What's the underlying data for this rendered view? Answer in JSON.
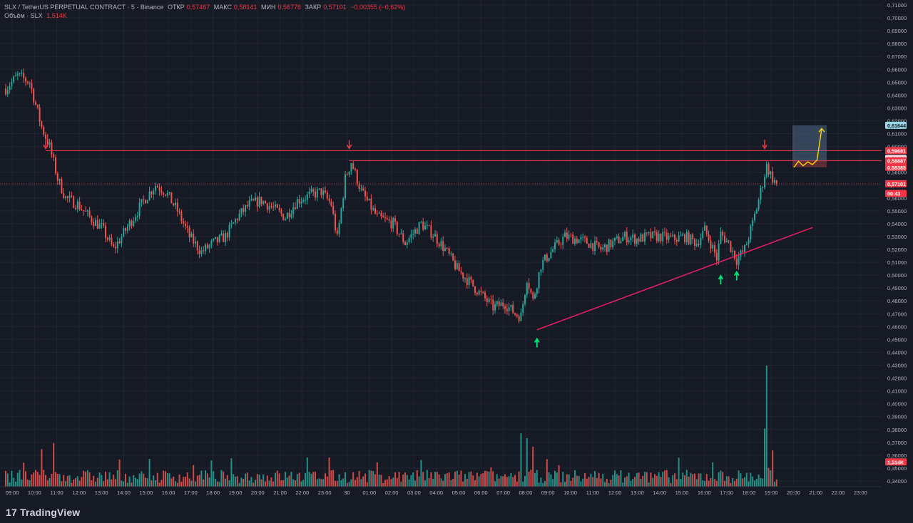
{
  "header": {
    "symbol": "SLX / TetherUS PERPETUAL CONTRACT · 5 · Binance",
    "open_label": "ОТКР",
    "open_value": "0,57467",
    "high_label": "МАКС",
    "high_value": "0,58141",
    "low_label": "МИН",
    "low_value": "0,56776",
    "close_label": "ЗАКР",
    "close_value": "0,57101",
    "change": "−0,00355 (−0,62%)",
    "volume_label": "Объём · SLX",
    "volume_value": "1,514K"
  },
  "price_axis": {
    "ticks": [
      "0,71000",
      "0,70000",
      "0,69000",
      "0,68000",
      "0,67000",
      "0,66000",
      "0,65000",
      "0,64000",
      "0,63000",
      "0,62000",
      "0,61000",
      "0,60000",
      "0,59000",
      "0,58000",
      "0,57000",
      "0,56000",
      "0,55000",
      "0,54000",
      "0,53000",
      "0,52000",
      "0,51000",
      "0,50000",
      "0,49000",
      "0,48000",
      "0,47000",
      "0,46000",
      "0,45000",
      "0,44000",
      "0,43000",
      "0,42000",
      "0,41000",
      "0,40000",
      "0,39000",
      "0,38000",
      "0,37000",
      "0,36000",
      "0,35000",
      "0,34000"
    ],
    "tick_values": [
      0.71,
      0.7,
      0.69,
      0.68,
      0.67,
      0.66,
      0.65,
      0.64,
      0.63,
      0.62,
      0.61,
      0.6,
      0.59,
      0.58,
      0.57,
      0.56,
      0.55,
      0.54,
      0.53,
      0.52,
      0.51,
      0.5,
      0.49,
      0.48,
      0.47,
      0.46,
      0.45,
      0.44,
      0.43,
      0.42,
      0.41,
      0.4,
      0.39,
      0.38,
      0.37,
      0.36,
      0.35,
      0.34
    ],
    "badges": [
      {
        "text": "0,61644",
        "value": 0.61644,
        "bg": "#9ad7e6",
        "fg": "#161a25"
      },
      {
        "text": "0,59681",
        "value": 0.59681,
        "bg": "#f23645",
        "fg": "#ffffff"
      },
      {
        "text": "0,59074",
        "value": 0.59074,
        "bg": "#f7d9df",
        "fg": "#161a25"
      },
      {
        "text": "0,58887",
        "value": 0.58887,
        "bg": "#f23645",
        "fg": "#ffffff"
      },
      {
        "text": "0,58385",
        "value": 0.58385,
        "bg": "#f23645",
        "fg": "#ffffff"
      },
      {
        "text": "0,57101",
        "value": 0.57101,
        "bg": "#f23645",
        "fg": "#ffffff"
      },
      {
        "text": "00:43",
        "value": 0.5635,
        "bg": "#f23645",
        "fg": "#ffffff"
      },
      {
        "text": "1,514K",
        "value": 0.3548,
        "bg": "#f23645",
        "fg": "#ffffff"
      }
    ]
  },
  "time_axis": {
    "labels": [
      "09:00",
      "10:00",
      "11:00",
      "12:00",
      "13:00",
      "14:00",
      "15:00",
      "16:00",
      "17:00",
      "18:00",
      "19:00",
      "20:00",
      "21:00",
      "22:00",
      "23:00",
      "30",
      "01:00",
      "02:00",
      "03:00",
      "04:00",
      "05:00",
      "06:00",
      "07:00",
      "08:00",
      "09:00",
      "10:00",
      "11:00",
      "12:00",
      "13:00",
      "14:00",
      "15:00",
      "16:00",
      "17:00",
      "18:00",
      "19:00",
      "20:00",
      "21:00",
      "22:00",
      "23:00"
    ]
  },
  "chart_data": {
    "type": "candlestick",
    "symbol": "SLX/USDT",
    "timeframe": "5",
    "ylim": [
      0.34,
      0.71
    ],
    "price_path": [
      [
        0,
        0.645
      ],
      [
        6,
        0.655
      ],
      [
        12,
        0.65
      ],
      [
        18,
        0.615
      ],
      [
        22,
        0.6
      ],
      [
        26,
        0.575
      ],
      [
        30,
        0.56
      ],
      [
        36,
        0.555
      ],
      [
        42,
        0.545
      ],
      [
        48,
        0.537
      ],
      [
        54,
        0.52
      ],
      [
        58,
        0.53
      ],
      [
        64,
        0.545
      ],
      [
        70,
        0.56
      ],
      [
        75,
        0.57
      ],
      [
        80,
        0.565
      ],
      [
        86,
        0.55
      ],
      [
        92,
        0.53
      ],
      [
        98,
        0.518
      ],
      [
        104,
        0.525
      ],
      [
        110,
        0.53
      ],
      [
        116,
        0.545
      ],
      [
        122,
        0.555
      ],
      [
        128,
        0.558
      ],
      [
        134,
        0.552
      ],
      [
        140,
        0.545
      ],
      [
        146,
        0.558
      ],
      [
        152,
        0.562
      ],
      [
        158,
        0.565
      ],
      [
        163,
        0.555
      ],
      [
        166,
        0.528
      ],
      [
        170,
        0.575
      ],
      [
        173,
        0.588
      ],
      [
        178,
        0.565
      ],
      [
        186,
        0.545
      ],
      [
        194,
        0.54
      ],
      [
        200,
        0.525
      ],
      [
        208,
        0.54
      ],
      [
        214,
        0.532
      ],
      [
        220,
        0.52
      ],
      [
        226,
        0.505
      ],
      [
        232,
        0.495
      ],
      [
        238,
        0.485
      ],
      [
        244,
        0.475
      ],
      [
        250,
        0.478
      ],
      [
        255,
        0.47
      ],
      [
        258,
        0.468
      ],
      [
        261,
        0.498
      ],
      [
        264,
        0.48
      ],
      [
        268,
        0.508
      ],
      [
        274,
        0.52
      ],
      [
        280,
        0.53
      ],
      [
        286,
        0.528
      ],
      [
        292,
        0.525
      ],
      [
        298,
        0.52
      ],
      [
        304,
        0.525
      ],
      [
        310,
        0.53
      ],
      [
        316,
        0.528
      ],
      [
        322,
        0.53
      ],
      [
        328,
        0.53
      ],
      [
        334,
        0.528
      ],
      [
        340,
        0.53
      ],
      [
        346,
        0.525
      ],
      [
        350,
        0.535
      ],
      [
        353,
        0.525
      ],
      [
        356,
        0.513
      ],
      [
        358,
        0.532
      ],
      [
        362,
        0.525
      ],
      [
        366,
        0.512
      ],
      [
        370,
        0.52
      ],
      [
        374,
        0.54
      ],
      [
        378,
        0.565
      ],
      [
        381,
        0.585
      ],
      [
        384,
        0.575
      ],
      [
        386,
        0.571
      ]
    ],
    "volume_spikes": [
      [
        18,
        0.31
      ],
      [
        24,
        0.36
      ],
      [
        162,
        0.24
      ],
      [
        208,
        0.22
      ],
      [
        258,
        0.44
      ],
      [
        261,
        0.4
      ],
      [
        264,
        0.33
      ],
      [
        337,
        0.24
      ],
      [
        354,
        0.2
      ],
      [
        380,
        0.48
      ],
      [
        381,
        1.0
      ],
      [
        384,
        0.3
      ]
    ],
    "drawings": {
      "resistance_1": 0.5968,
      "resistance_2": 0.5889,
      "current_price": 0.57101,
      "trendline": {
        "from": [
          266,
          0.4575
        ],
        "to": [
          404,
          0.537
        ]
      },
      "projection": {
        "box_top": 0.61644,
        "box_mid": 0.58887,
        "box_bottom": 0.58385,
        "path": [
          [
            0.5838
          ],
          [
            0.5885
          ],
          [
            0.585
          ],
          [
            0.588
          ],
          [
            0.586
          ],
          [
            0.5895
          ],
          [
            0.614
          ]
        ]
      },
      "arrows_down": [
        [
          20,
          0.5968
        ],
        [
          172,
          0.5968
        ],
        [
          380,
          0.5968
        ]
      ],
      "arrows_up": [
        [
          266,
          0.4505
        ],
        [
          358,
          0.4995
        ],
        [
          366,
          0.5025
        ]
      ]
    }
  },
  "branding": {
    "logo_text": "TradingView",
    "logo_mark": "17"
  },
  "colors": {
    "background": "#161a25",
    "up": "#26a69a",
    "down": "#ef5350",
    "line_red": "#f23645",
    "trend_pink": "#e91e63",
    "projection_yellow": "#ffd600",
    "signal_green": "#00e676",
    "axis_text": "#b2b5be"
  }
}
